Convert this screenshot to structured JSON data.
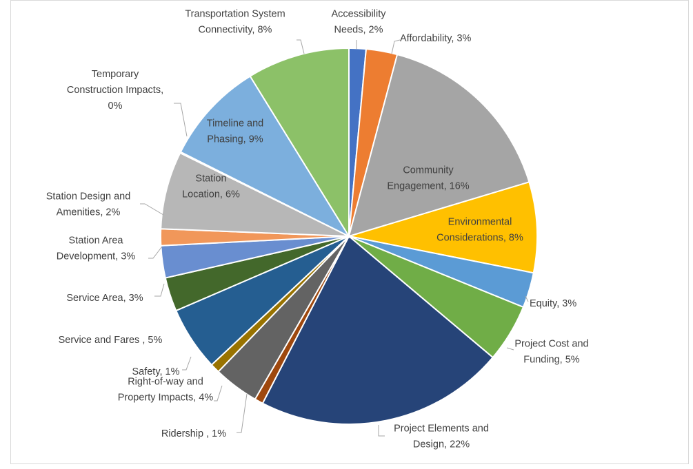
{
  "chart_data": {
    "type": "pie",
    "title": "",
    "slices": [
      {
        "label": "Accessibility Needs",
        "value": 2,
        "text": [
          "Accessibility",
          "Needs, 2%"
        ],
        "color": "#4472c4"
      },
      {
        "label": "Affordability",
        "value": 3,
        "text": [
          "Affordability, 3%"
        ],
        "color": "#ed7d31"
      },
      {
        "label": "Community Engagement",
        "value": 16,
        "text": [
          "Community",
          "Engagement, 16%"
        ],
        "color": "#a5a5a5"
      },
      {
        "label": "Environmental Considerations",
        "value": 8,
        "text": [
          "Environmental",
          "Considerations, 8%"
        ],
        "color": "#ffc000"
      },
      {
        "label": "Equity",
        "value": 3,
        "text": [
          "Equity, 3%"
        ],
        "color": "#5b9bd5"
      },
      {
        "label": "Project Cost and Funding",
        "value": 5,
        "text": [
          "Project Cost and",
          "Funding, 5%"
        ],
        "color": "#70ad47"
      },
      {
        "label": "Project Elements and Design",
        "value": 22,
        "text": [
          "Project Elements and",
          "Design, 22%"
        ],
        "color": "#264478"
      },
      {
        "label": "Ridership",
        "value": 1,
        "text": [
          "Ridership , 1%"
        ],
        "color": "#9e480e"
      },
      {
        "label": "Right-of-way and Property Impacts",
        "value": 4,
        "text": [
          "Right-of-way and",
          "Property Impacts, 4%"
        ],
        "color": "#636363"
      },
      {
        "label": "Safety",
        "value": 1,
        "text": [
          "Safety, 1%"
        ],
        "color": "#997300"
      },
      {
        "label": "Service and Fares",
        "value": 5,
        "text": [
          "Service and Fares , 5%"
        ],
        "color": "#255e91"
      },
      {
        "label": "Service Area",
        "value": 3,
        "text": [
          "Service Area, 3%"
        ],
        "color": "#43682b"
      },
      {
        "label": "Station Area Development",
        "value": 3,
        "text": [
          "Station Area",
          "Development, 3%"
        ],
        "color": "#698ed0"
      },
      {
        "label": "Station Design and Amenities",
        "value": 2,
        "text": [
          "Station Design and",
          "Amenities, 2%"
        ],
        "color": "#f1975a"
      },
      {
        "label": "Station Location",
        "value": 6,
        "text": [
          "Station",
          "Location, 6%"
        ],
        "color": "#b7b7b7"
      },
      {
        "label": "Temporary Construction Impacts",
        "value": 0,
        "text": [
          "Temporary",
          "Construction Impacts,",
          "0%"
        ],
        "color": "#ffcd33"
      },
      {
        "label": "Timeline and Phasing",
        "value": 9,
        "text": [
          "Timeline and",
          "Phasing, 9%"
        ],
        "color": "#7cafdd"
      },
      {
        "label": "Transportation System Connectivity",
        "value": 8,
        "text": [
          "Transportation System",
          "Connectivity, 8%"
        ],
        "color": "#8cc168"
      }
    ],
    "legend": "none"
  }
}
